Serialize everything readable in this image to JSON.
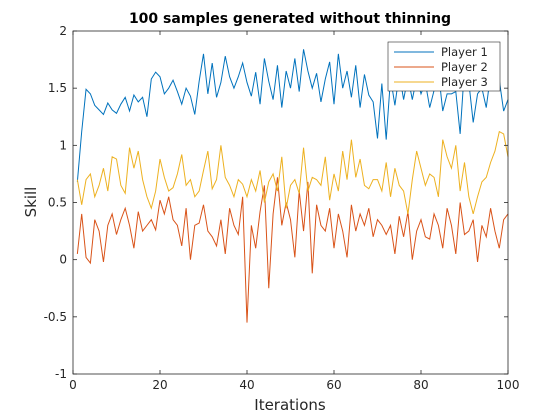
{
  "chart_data": {
    "type": "line",
    "title": "100 samples generated without thinning",
    "xlabel": "Iterations",
    "ylabel": "Skill",
    "xlim": [
      0,
      100
    ],
    "ylim": [
      -1,
      2
    ],
    "xticks": [
      0,
      20,
      40,
      60,
      80,
      100
    ],
    "xtick_labels": [
      "0",
      "20",
      "40",
      "60",
      "80",
      "100"
    ],
    "yticks": [
      -1,
      -0.5,
      0,
      0.5,
      1,
      1.5,
      2
    ],
    "ytick_labels": [
      "-1",
      "-0.5",
      "0",
      "0.5",
      "1",
      "1.5",
      "2"
    ],
    "grid": false,
    "legend_position": "top-right",
    "x": [
      1,
      2,
      3,
      4,
      5,
      6,
      7,
      8,
      9,
      10,
      11,
      12,
      13,
      14,
      15,
      16,
      17,
      18,
      19,
      20,
      21,
      22,
      23,
      24,
      25,
      26,
      27,
      28,
      29,
      30,
      31,
      32,
      33,
      34,
      35,
      36,
      37,
      38,
      39,
      40,
      41,
      42,
      43,
      44,
      45,
      46,
      47,
      48,
      49,
      50,
      51,
      52,
      53,
      54,
      55,
      56,
      57,
      58,
      59,
      60,
      61,
      62,
      63,
      64,
      65,
      66,
      67,
      68,
      69,
      70,
      71,
      72,
      73,
      74,
      75,
      76,
      77,
      78,
      79,
      80,
      81,
      82,
      83,
      84,
      85,
      86,
      87,
      88,
      89,
      90,
      91,
      92,
      93,
      94,
      95,
      96,
      97,
      98,
      99,
      100
    ],
    "series": [
      {
        "name": "Player 1",
        "color": "#0072BD",
        "values": [
          0.68,
          1.12,
          1.49,
          1.45,
          1.35,
          1.31,
          1.27,
          1.37,
          1.31,
          1.28,
          1.36,
          1.42,
          1.3,
          1.44,
          1.38,
          1.42,
          1.25,
          1.58,
          1.64,
          1.6,
          1.45,
          1.5,
          1.57,
          1.47,
          1.36,
          1.5,
          1.43,
          1.27,
          1.56,
          1.8,
          1.45,
          1.72,
          1.42,
          1.55,
          1.78,
          1.6,
          1.5,
          1.6,
          1.72,
          1.55,
          1.43,
          1.64,
          1.36,
          1.76,
          1.56,
          1.4,
          1.7,
          1.33,
          1.65,
          1.5,
          1.76,
          1.47,
          1.84,
          1.65,
          1.5,
          1.63,
          1.38,
          1.58,
          1.73,
          1.36,
          1.8,
          1.5,
          1.65,
          1.42,
          1.7,
          1.33,
          1.62,
          1.44,
          1.38,
          1.06,
          1.54,
          1.05,
          1.59,
          1.35,
          1.63,
          1.4,
          1.6,
          1.4,
          1.59,
          1.45,
          1.55,
          1.33,
          1.48,
          1.65,
          1.3,
          1.45,
          1.45,
          1.47,
          1.1,
          1.68,
          1.55,
          1.2,
          1.45,
          1.5,
          1.33,
          1.62,
          1.5,
          1.57,
          1.3,
          1.4
        ]
      },
      {
        "name": "Player 2",
        "color": "#D95319",
        "values": [
          0.05,
          0.4,
          0.02,
          -0.03,
          0.35,
          0.25,
          -0.02,
          0.3,
          0.4,
          0.22,
          0.35,
          0.45,
          0.3,
          0.1,
          0.42,
          0.25,
          0.3,
          0.35,
          0.26,
          0.52,
          0.4,
          0.55,
          0.35,
          0.3,
          0.12,
          0.45,
          0.0,
          0.3,
          0.32,
          0.48,
          0.25,
          0.2,
          0.12,
          0.35,
          0.05,
          0.45,
          0.3,
          0.22,
          0.55,
          -0.55,
          0.3,
          0.1,
          0.42,
          0.65,
          -0.25,
          0.4,
          0.72,
          0.3,
          0.5,
          0.35,
          0.02,
          0.6,
          0.25,
          0.68,
          -0.12,
          0.48,
          0.3,
          0.25,
          0.45,
          0.1,
          0.4,
          0.25,
          0.02,
          0.48,
          0.25,
          0.4,
          0.3,
          0.45,
          0.2,
          0.35,
          0.3,
          0.22,
          0.3,
          0.05,
          0.38,
          0.2,
          0.42,
          0.0,
          0.25,
          0.35,
          0.2,
          0.18,
          0.4,
          0.3,
          0.1,
          0.45,
          0.3,
          0.05,
          0.5,
          0.22,
          0.25,
          0.35,
          -0.02,
          0.3,
          0.2,
          0.45,
          0.25,
          0.1,
          0.35,
          0.4
        ]
      },
      {
        "name": "Player 3",
        "color": "#EDB120",
        "values": [
          0.7,
          0.48,
          0.7,
          0.75,
          0.55,
          0.65,
          0.8,
          0.6,
          0.9,
          0.88,
          0.65,
          0.58,
          0.98,
          0.8,
          0.95,
          0.7,
          0.55,
          0.45,
          0.6,
          0.88,
          0.72,
          0.6,
          0.63,
          0.75,
          0.92,
          0.65,
          0.7,
          0.55,
          0.6,
          0.78,
          0.95,
          0.62,
          0.7,
          1.0,
          0.72,
          0.65,
          0.55,
          0.7,
          0.66,
          0.55,
          0.7,
          0.6,
          0.78,
          0.5,
          0.68,
          0.75,
          0.6,
          0.9,
          0.45,
          0.65,
          0.7,
          0.58,
          0.98,
          0.6,
          0.72,
          0.7,
          0.65,
          0.9,
          0.52,
          0.75,
          0.6,
          0.95,
          0.7,
          1.05,
          0.72,
          0.88,
          0.65,
          0.62,
          0.7,
          0.7,
          0.6,
          0.85,
          0.55,
          0.8,
          0.65,
          0.6,
          0.4,
          0.7,
          0.95,
          0.8,
          0.65,
          0.75,
          0.72,
          0.55,
          1.05,
          0.9,
          0.8,
          1.0,
          0.6,
          0.85,
          0.55,
          0.4,
          0.55,
          0.68,
          0.72,
          0.85,
          0.95,
          1.12,
          1.1,
          0.9
        ]
      }
    ]
  }
}
